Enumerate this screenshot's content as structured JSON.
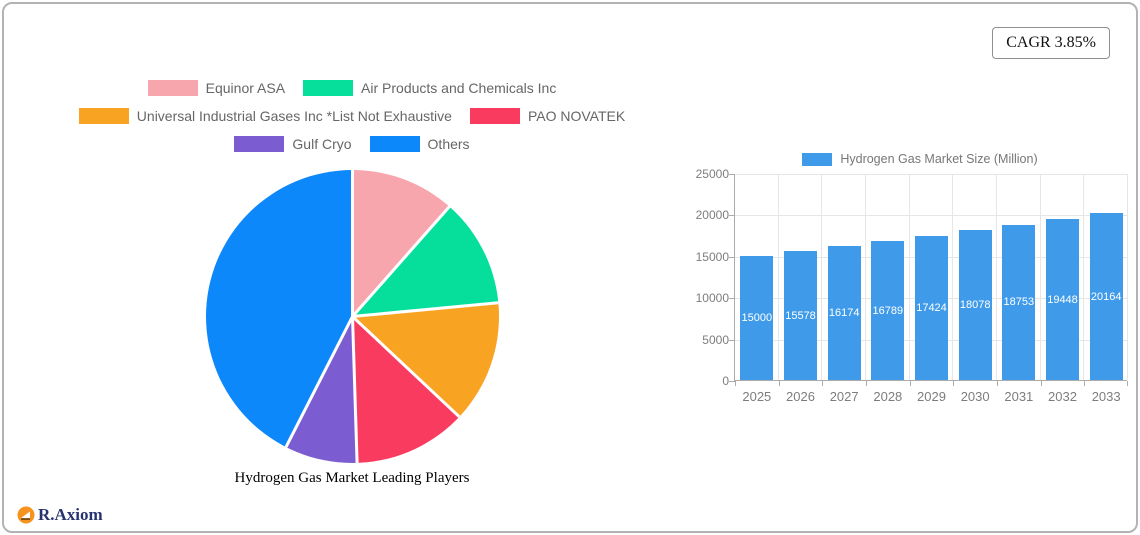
{
  "card": {
    "cagr_label": "CAGR 3.85%"
  },
  "brand": {
    "name": "R.Axiom",
    "icon_color": "#f6921e",
    "text_color": "#27336f"
  },
  "chart_data": [
    {
      "type": "pie",
      "title": "Hydrogen Gas Market Leading Players",
      "legend_position": "top",
      "start_angle_deg": 0,
      "direction": "clockwise",
      "slices": [
        {
          "label": "Equinor ASA",
          "value": 11.5,
          "color": "#f6a6ac"
        },
        {
          "label": "Air Products and Chemicals Inc",
          "value": 12.0,
          "color": "#06df9c"
        },
        {
          "label": "Universal Industrial Gases Inc *List Not Exhaustive",
          "value": 13.5,
          "color": "#f9a322"
        },
        {
          "label": "PAO NOVATEK",
          "value": 12.5,
          "color": "#f93b60"
        },
        {
          "label": "Gulf Cryo",
          "value": 8.0,
          "color": "#7c5dd1"
        },
        {
          "label": "Others",
          "value": 42.5,
          "color": "#0d88fb"
        }
      ]
    },
    {
      "type": "bar",
      "legend_label": "Hydrogen Gas Market Size (Million)",
      "bar_color": "#3f9bea",
      "categories": [
        "2025",
        "2026",
        "2027",
        "2028",
        "2029",
        "2030",
        "2031",
        "2032",
        "2033"
      ],
      "values": [
        15000,
        15578,
        16174,
        16789,
        17424,
        18078,
        18753,
        19448,
        20164
      ],
      "ylim": [
        0,
        25000
      ],
      "yticks": [
        0,
        5000,
        10000,
        15000,
        20000,
        25000
      ],
      "grid": true,
      "value_label_style": "white-inside-bar"
    }
  ]
}
